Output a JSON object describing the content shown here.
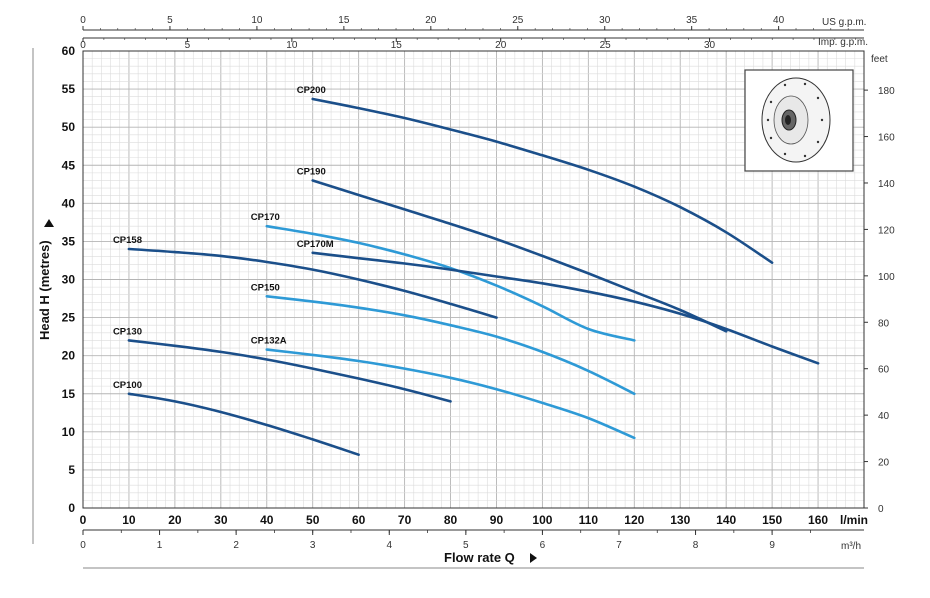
{
  "chart_data": {
    "type": "line",
    "x_primary": {
      "label": "l/min",
      "ticks": [
        0,
        10,
        20,
        30,
        40,
        50,
        60,
        70,
        80,
        90,
        100,
        110,
        120,
        130,
        140,
        150,
        160
      ],
      "range": [
        0,
        170
      ]
    },
    "x_m3h": {
      "unit": "m³/h",
      "ticks": [
        "0",
        "1",
        "2",
        "3",
        "4",
        "5",
        "6",
        "7",
        "8",
        "9"
      ]
    },
    "x_usgpm": {
      "unit": "US g.p.m.",
      "ticks": [
        "0",
        "5",
        "10",
        "15",
        "20",
        "25",
        "30",
        "35",
        "40"
      ]
    },
    "x_impgpm": {
      "unit": "Imp. g.p.m.",
      "ticks": [
        "0",
        "5",
        "10",
        "15",
        "20",
        "25",
        "30"
      ]
    },
    "y_primary": {
      "label": "Head H (metres)",
      "ticks": [
        0,
        5,
        10,
        15,
        20,
        25,
        30,
        35,
        40,
        45,
        50,
        55,
        60
      ],
      "range": [
        0,
        60
      ]
    },
    "y_feet": {
      "unit": "feet",
      "ticks": [
        0,
        20,
        40,
        60,
        80,
        100,
        120,
        140,
        160,
        180
      ]
    },
    "xlabel": "Flow rate Q",
    "series": [
      {
        "name": "CP200",
        "color": "#1b4f8a",
        "x": [
          50,
          60,
          70,
          80,
          90,
          100,
          110,
          120,
          130,
          140,
          150
        ],
        "y": [
          53.7,
          52.5,
          51.2,
          49.7,
          48.1,
          46.3,
          44.4,
          42.2,
          39.5,
          36.2,
          32.2
        ]
      },
      {
        "name": "CP190",
        "color": "#1b4f8a",
        "x": [
          50,
          60,
          70,
          80,
          90,
          100,
          110,
          120,
          130,
          140
        ],
        "y": [
          43,
          41.1,
          39.2,
          37.3,
          35.3,
          33.1,
          30.8,
          28.4,
          26,
          23.2
        ]
      },
      {
        "name": "CP170",
        "color": "#2e9ad6",
        "x": [
          40,
          50,
          60,
          70,
          80,
          90,
          100,
          110,
          120
        ],
        "y": [
          37,
          36,
          34.8,
          33.3,
          31.5,
          29.2,
          26.5,
          23.5,
          22
        ]
      },
      {
        "name": "CP170M",
        "color": "#1b4f8a",
        "x": [
          50,
          60,
          70,
          80,
          90,
          100,
          110,
          120,
          130,
          140,
          150,
          160
        ],
        "y": [
          33.5,
          32.8,
          32.1,
          31.3,
          30.4,
          29.5,
          28.4,
          27.1,
          25.5,
          23.5,
          21.2,
          19
        ]
      },
      {
        "name": "CP158",
        "color": "#1b4f8a",
        "x": [
          10,
          20,
          30,
          40,
          50,
          60,
          70,
          80,
          90
        ],
        "y": [
          34,
          33.6,
          33.1,
          32.3,
          31.3,
          30,
          28.5,
          26.8,
          25
        ]
      },
      {
        "name": "CP150",
        "color": "#2e9ad6",
        "x": [
          40,
          50,
          60,
          70,
          80,
          90,
          100,
          110,
          120
        ],
        "y": [
          27.8,
          27.1,
          26.3,
          25.3,
          24,
          22.5,
          20.5,
          18,
          15
        ]
      },
      {
        "name": "CP132A",
        "color": "#2e9ad6",
        "x": [
          40,
          50,
          60,
          70,
          80,
          90,
          100,
          110,
          120
        ],
        "y": [
          20.8,
          20.1,
          19.3,
          18.3,
          17.1,
          15.6,
          13.8,
          11.8,
          9.2
        ]
      },
      {
        "name": "CP130",
        "color": "#1b4f8a",
        "x": [
          10,
          20,
          30,
          40,
          50,
          60,
          70,
          80
        ],
        "y": [
          22,
          21.3,
          20.5,
          19.5,
          18.3,
          17,
          15.6,
          14
        ]
      },
      {
        "name": "CP100",
        "color": "#1b4f8a",
        "x": [
          10,
          20,
          30,
          40,
          50,
          60
        ],
        "y": [
          15,
          14,
          12.6,
          10.9,
          9,
          7
        ]
      }
    ],
    "grid": true
  }
}
